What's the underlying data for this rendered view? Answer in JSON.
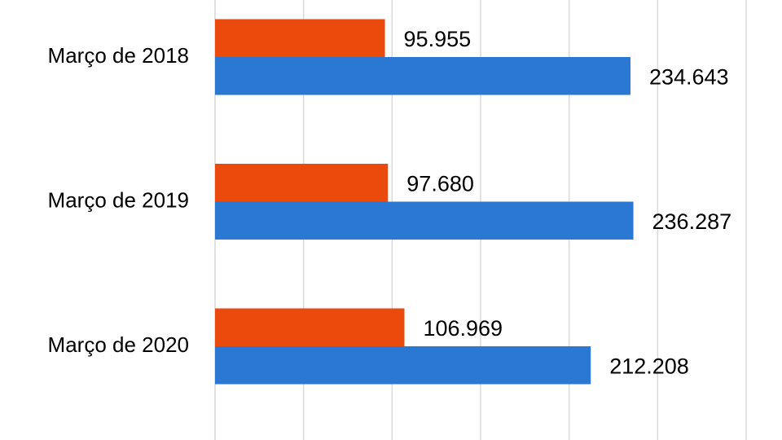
{
  "chart_data": {
    "type": "barh",
    "categories": [
      "Março de 2018",
      "Março de 2019",
      "Março de 2020"
    ],
    "series": [
      {
        "color": "#ea4a0c",
        "values": [
          95955,
          97680,
          106969
        ],
        "value_labels": [
          "95.955",
          "97.680",
          "106.969"
        ]
      },
      {
        "color": "#2a78d2",
        "values": [
          234643,
          236287,
          212208
        ],
        "value_labels": [
          "234.643",
          "236.287",
          "212.208"
        ]
      }
    ],
    "xlim": [
      0,
      300000
    ],
    "xticks": [
      0,
      50000,
      100000,
      150000,
      200000,
      250000,
      300000
    ],
    "grid": true
  }
}
